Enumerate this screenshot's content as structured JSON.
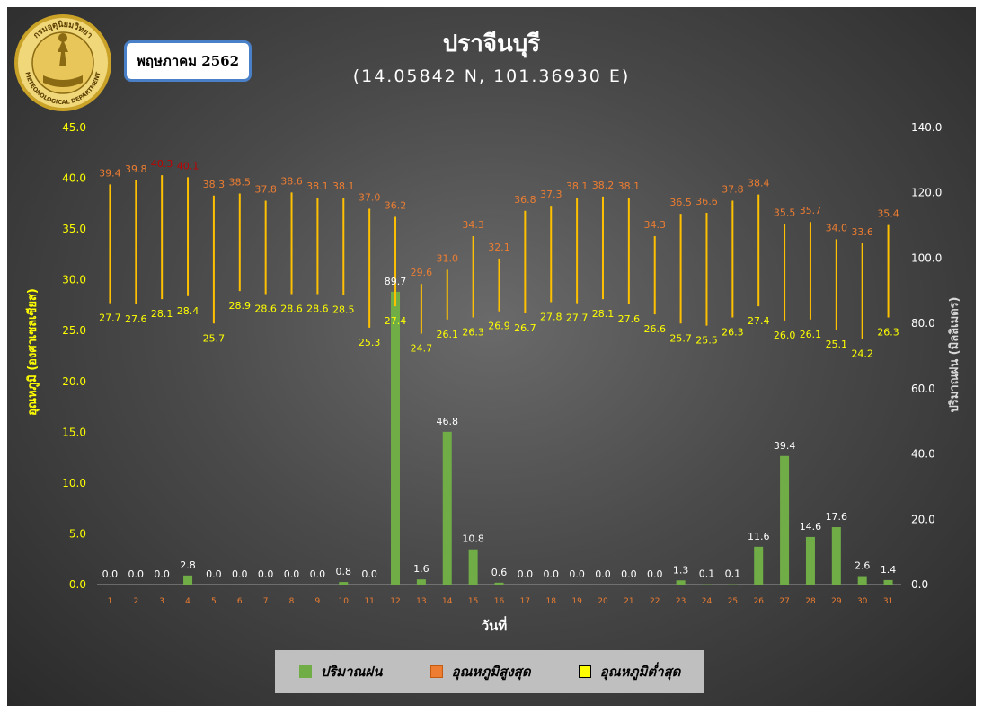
{
  "header": {
    "month_label": "พฤษภาคม 2562",
    "title": "ปราจีนบุรี",
    "subtitle": "(14.05842 N, 101.36930 E)",
    "logo_text_top": "กรมอุตุนิยมวิทยา",
    "logo_text_bottom": "METEOROLOGICAL DEPARTMENT"
  },
  "colors": {
    "rain": "#70ad47",
    "tmax": "#ed7d31",
    "tmax_hot": "#c00000",
    "tmin": "#ffff00",
    "bar_line": "#ffc000",
    "axis_left": "#ffff00",
    "axis_right": "#ffffff",
    "xtick": "#ed7d31"
  },
  "legend": [
    {
      "label": "ปริมาณฝน",
      "color": "#70ad47",
      "border": "#70ad47"
    },
    {
      "label": "อุณหภูมิสูงสุด",
      "color": "#ed7d31",
      "border": "#c55a11"
    },
    {
      "label": "อุณหภูมิต่ำสุด",
      "color": "#ffff00",
      "border": "#000000"
    }
  ],
  "chart_data": {
    "type": "bar",
    "xlabel": "วันที่",
    "ylabel_left": "อุณหภูมิ (องศาเซลเซียส)",
    "ylabel_right": "ปริมาณฝน (มิลลิเมตร)",
    "ylim_left": [
      0,
      45
    ],
    "ylim_right": [
      0,
      140
    ],
    "left_ticks": [
      "0.0",
      "5.0",
      "10.0",
      "15.0",
      "20.0",
      "25.0",
      "30.0",
      "35.0",
      "40.0",
      "45.0"
    ],
    "right_ticks": [
      "0.0",
      "20.0",
      "40.0",
      "60.0",
      "80.0",
      "100.0",
      "120.0",
      "140.0"
    ],
    "categories": [
      "1",
      "2",
      "3",
      "4",
      "5",
      "6",
      "7",
      "8",
      "9",
      "10",
      "11",
      "12",
      "13",
      "14",
      "15",
      "16",
      "17",
      "18",
      "19",
      "20",
      "21",
      "22",
      "23",
      "24",
      "25",
      "26",
      "27",
      "28",
      "29",
      "30",
      "31"
    ],
    "series": [
      {
        "name": "ปริมาณฝน",
        "axis": "right",
        "values": [
          0.0,
          0.0,
          0.0,
          2.8,
          0.0,
          0.0,
          0.0,
          0.0,
          0.0,
          0.8,
          0.0,
          89.7,
          1.6,
          46.8,
          10.8,
          0.6,
          0.0,
          0.0,
          0.0,
          0.0,
          0.0,
          0.0,
          1.3,
          0.1,
          0.1,
          11.6,
          39.4,
          14.6,
          17.6,
          2.6,
          1.4
        ]
      },
      {
        "name": "อุณหภูมิสูงสุด",
        "axis": "left",
        "values": [
          39.4,
          39.8,
          40.3,
          40.1,
          38.3,
          38.5,
          37.8,
          38.6,
          38.1,
          38.1,
          37.0,
          36.2,
          29.6,
          31.0,
          34.3,
          32.1,
          36.8,
          37.3,
          38.1,
          38.2,
          38.1,
          34.3,
          36.5,
          36.6,
          37.8,
          38.4,
          35.5,
          35.7,
          34.0,
          33.6,
          35.4
        ]
      },
      {
        "name": "อุณหภูมิต่ำสุด",
        "axis": "left",
        "values": [
          27.7,
          27.6,
          28.1,
          28.4,
          25.7,
          28.9,
          28.6,
          28.6,
          28.6,
          28.5,
          25.3,
          27.4,
          24.7,
          26.1,
          26.3,
          26.9,
          26.7,
          27.8,
          27.7,
          28.1,
          27.6,
          26.6,
          25.7,
          25.5,
          26.3,
          27.4,
          26.0,
          26.1,
          25.1,
          24.2,
          26.3
        ]
      }
    ]
  }
}
